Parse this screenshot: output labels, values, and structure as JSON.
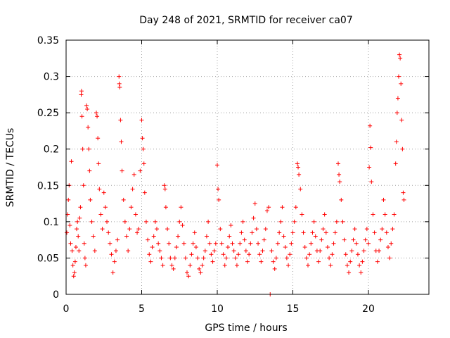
{
  "chart_data": {
    "type": "scatter",
    "title": "Day 248 of 2021, SRMTID for receiver ca07",
    "xlabel": "GPS time / hours",
    "ylabel": "SRMTID / TECUs",
    "xlim": [
      0,
      24
    ],
    "ylim": [
      0,
      0.35
    ],
    "xticks": [
      0,
      5,
      10,
      15,
      20
    ],
    "xtick_labels": [
      "0",
      "5",
      "10",
      "15",
      "20"
    ],
    "yticks": [
      0,
      0.05,
      0.1,
      0.15,
      0.2,
      0.25,
      0.3,
      0.35
    ],
    "ytick_labels": [
      "0",
      "0.05",
      "0.1",
      "0.15",
      "0.2",
      "0.25",
      "0.3",
      "0.35"
    ],
    "grid": true,
    "marker": "+",
    "series": [
      {
        "name": "SRMTID",
        "color": "#ff0000",
        "points": [
          [
            0.05,
            0.085
          ],
          [
            0.1,
            0.11
          ],
          [
            0.15,
            0.13
          ],
          [
            0.2,
            0.15
          ],
          [
            0.25,
            0.095
          ],
          [
            0.3,
            0.07
          ],
          [
            0.35,
            0.183
          ],
          [
            0.4,
            0.06
          ],
          [
            0.45,
            0.04
          ],
          [
            0.5,
            0.025
          ],
          [
            0.55,
            0.03
          ],
          [
            0.6,
            0.045
          ],
          [
            0.65,
            0.065
          ],
          [
            0.7,
            0.09
          ],
          [
            0.75,
            0.1
          ],
          [
            0.8,
            0.08
          ],
          [
            0.85,
            0.06
          ],
          [
            0.9,
            0.105
          ],
          [
            0.95,
            0.12
          ],
          [
            1.0,
            0.275
          ],
          [
            1.02,
            0.28
          ],
          [
            1.05,
            0.245
          ],
          [
            1.1,
            0.2
          ],
          [
            1.15,
            0.15
          ],
          [
            1.2,
            0.07
          ],
          [
            1.25,
            0.05
          ],
          [
            1.3,
            0.04
          ],
          [
            1.35,
            0.26
          ],
          [
            1.4,
            0.255
          ],
          [
            1.45,
            0.23
          ],
          [
            1.5,
            0.2
          ],
          [
            1.55,
            0.17
          ],
          [
            1.6,
            0.13
          ],
          [
            1.7,
            0.1
          ],
          [
            1.8,
            0.08
          ],
          [
            1.9,
            0.06
          ],
          [
            2.0,
            0.25
          ],
          [
            2.05,
            0.245
          ],
          [
            2.1,
            0.215
          ],
          [
            2.15,
            0.18
          ],
          [
            2.2,
            0.145
          ],
          [
            2.3,
            0.11
          ],
          [
            2.4,
            0.09
          ],
          [
            2.5,
            0.14
          ],
          [
            2.6,
            0.12
          ],
          [
            2.7,
            0.1
          ],
          [
            2.8,
            0.085
          ],
          [
            2.9,
            0.07
          ],
          [
            3.0,
            0.055
          ],
          [
            3.1,
            0.03
          ],
          [
            3.2,
            0.045
          ],
          [
            3.3,
            0.06
          ],
          [
            3.4,
            0.075
          ],
          [
            3.5,
            0.3
          ],
          [
            3.52,
            0.29
          ],
          [
            3.55,
            0.285
          ],
          [
            3.6,
            0.24
          ],
          [
            3.65,
            0.21
          ],
          [
            3.7,
            0.17
          ],
          [
            3.8,
            0.13
          ],
          [
            3.9,
            0.1
          ],
          [
            4.0,
            0.08
          ],
          [
            4.1,
            0.06
          ],
          [
            4.2,
            0.09
          ],
          [
            4.3,
            0.12
          ],
          [
            4.4,
            0.145
          ],
          [
            4.5,
            0.165
          ],
          [
            4.6,
            0.11
          ],
          [
            4.7,
            0.085
          ],
          [
            4.8,
            0.09
          ],
          [
            4.9,
            0.17
          ],
          [
            5.0,
            0.24
          ],
          [
            5.05,
            0.215
          ],
          [
            5.1,
            0.2
          ],
          [
            5.15,
            0.18
          ],
          [
            5.2,
            0.14
          ],
          [
            5.3,
            0.1
          ],
          [
            5.4,
            0.075
          ],
          [
            5.5,
            0.055
          ],
          [
            5.6,
            0.045
          ],
          [
            5.7,
            0.065
          ],
          [
            5.8,
            0.08
          ],
          [
            5.9,
            0.1
          ],
          [
            6.0,
            0.09
          ],
          [
            6.1,
            0.07
          ],
          [
            6.2,
            0.06
          ],
          [
            6.3,
            0.05
          ],
          [
            6.4,
            0.04
          ],
          [
            6.5,
            0.15
          ],
          [
            6.55,
            0.145
          ],
          [
            6.6,
            0.12
          ],
          [
            6.7,
            0.09
          ],
          [
            6.8,
            0.07
          ],
          [
            6.9,
            0.05
          ],
          [
            7.0,
            0.04
          ],
          [
            7.1,
            0.035
          ],
          [
            7.2,
            0.05
          ],
          [
            7.3,
            0.065
          ],
          [
            7.4,
            0.08
          ],
          [
            7.5,
            0.1
          ],
          [
            7.6,
            0.12
          ],
          [
            7.7,
            0.095
          ],
          [
            7.8,
            0.07
          ],
          [
            7.9,
            0.05
          ],
          [
            8.0,
            0.03
          ],
          [
            8.1,
            0.025
          ],
          [
            8.2,
            0.04
          ],
          [
            8.3,
            0.055
          ],
          [
            8.4,
            0.07
          ],
          [
            8.5,
            0.085
          ],
          [
            8.6,
            0.065
          ],
          [
            8.7,
            0.05
          ],
          [
            8.8,
            0.035
          ],
          [
            8.9,
            0.03
          ],
          [
            9.0,
            0.04
          ],
          [
            9.1,
            0.05
          ],
          [
            9.2,
            0.06
          ],
          [
            9.3,
            0.08
          ],
          [
            9.4,
            0.1
          ],
          [
            9.5,
            0.07
          ],
          [
            9.6,
            0.055
          ],
          [
            9.7,
            0.045
          ],
          [
            9.8,
            0.06
          ],
          [
            9.9,
            0.07
          ],
          [
            10.0,
            0.178
          ],
          [
            10.05,
            0.145
          ],
          [
            10.1,
            0.13
          ],
          [
            10.2,
            0.09
          ],
          [
            10.3,
            0.07
          ],
          [
            10.4,
            0.055
          ],
          [
            10.5,
            0.04
          ],
          [
            10.6,
            0.05
          ],
          [
            10.7,
            0.065
          ],
          [
            10.8,
            0.08
          ],
          [
            10.9,
            0.095
          ],
          [
            11.0,
            0.07
          ],
          [
            11.1,
            0.06
          ],
          [
            11.2,
            0.05
          ],
          [
            11.3,
            0.04
          ],
          [
            11.4,
            0.055
          ],
          [
            11.5,
            0.07
          ],
          [
            11.6,
            0.085
          ],
          [
            11.7,
            0.1
          ],
          [
            11.8,
            0.075
          ],
          [
            11.9,
            0.06
          ],
          [
            12.0,
            0.045
          ],
          [
            12.1,
            0.055
          ],
          [
            12.2,
            0.07
          ],
          [
            12.3,
            0.085
          ],
          [
            12.4,
            0.105
          ],
          [
            12.5,
            0.125
          ],
          [
            12.6,
            0.09
          ],
          [
            12.7,
            0.07
          ],
          [
            12.8,
            0.055
          ],
          [
            12.9,
            0.045
          ],
          [
            13.0,
            0.06
          ],
          [
            13.1,
            0.075
          ],
          [
            13.2,
            0.09
          ],
          [
            13.3,
            0.115
          ],
          [
            13.4,
            0.12
          ],
          [
            13.5,
            0.0
          ],
          [
            13.6,
            0.06
          ],
          [
            13.7,
            0.045
          ],
          [
            13.8,
            0.035
          ],
          [
            13.9,
            0.05
          ],
          [
            14.0,
            0.07
          ],
          [
            14.1,
            0.085
          ],
          [
            14.2,
            0.1
          ],
          [
            14.3,
            0.12
          ],
          [
            14.4,
            0.08
          ],
          [
            14.5,
            0.065
          ],
          [
            14.6,
            0.05
          ],
          [
            14.7,
            0.04
          ],
          [
            14.8,
            0.055
          ],
          [
            14.9,
            0.07
          ],
          [
            15.0,
            0.085
          ],
          [
            15.1,
            0.1
          ],
          [
            15.2,
            0.12
          ],
          [
            15.3,
            0.18
          ],
          [
            15.35,
            0.175
          ],
          [
            15.4,
            0.165
          ],
          [
            15.5,
            0.145
          ],
          [
            15.6,
            0.11
          ],
          [
            15.7,
            0.085
          ],
          [
            15.8,
            0.065
          ],
          [
            15.9,
            0.05
          ],
          [
            16.0,
            0.04
          ],
          [
            16.1,
            0.055
          ],
          [
            16.2,
            0.07
          ],
          [
            16.3,
            0.085
          ],
          [
            16.4,
            0.1
          ],
          [
            16.5,
            0.08
          ],
          [
            16.6,
            0.06
          ],
          [
            16.7,
            0.045
          ],
          [
            16.8,
            0.06
          ],
          [
            16.9,
            0.075
          ],
          [
            17.0,
            0.09
          ],
          [
            17.1,
            0.11
          ],
          [
            17.2,
            0.085
          ],
          [
            17.3,
            0.065
          ],
          [
            17.4,
            0.05
          ],
          [
            17.5,
            0.04
          ],
          [
            17.6,
            0.055
          ],
          [
            17.7,
            0.07
          ],
          [
            17.8,
            0.085
          ],
          [
            17.9,
            0.1
          ],
          [
            18.0,
            0.18
          ],
          [
            18.05,
            0.165
          ],
          [
            18.1,
            0.155
          ],
          [
            18.2,
            0.13
          ],
          [
            18.3,
            0.1
          ],
          [
            18.4,
            0.075
          ],
          [
            18.5,
            0.055
          ],
          [
            18.6,
            0.04
          ],
          [
            18.7,
            0.03
          ],
          [
            18.8,
            0.045
          ],
          [
            18.9,
            0.06
          ],
          [
            19.0,
            0.075
          ],
          [
            19.1,
            0.09
          ],
          [
            19.2,
            0.07
          ],
          [
            19.3,
            0.055
          ],
          [
            19.4,
            0.04
          ],
          [
            19.5,
            0.03
          ],
          [
            19.6,
            0.045
          ],
          [
            19.7,
            0.06
          ],
          [
            19.8,
            0.075
          ],
          [
            19.9,
            0.09
          ],
          [
            20.0,
            0.07
          ],
          [
            20.05,
            0.175
          ],
          [
            20.1,
            0.232
          ],
          [
            20.15,
            0.202
          ],
          [
            20.2,
            0.155
          ],
          [
            20.3,
            0.11
          ],
          [
            20.4,
            0.085
          ],
          [
            20.5,
            0.06
          ],
          [
            20.6,
            0.045
          ],
          [
            20.7,
            0.06
          ],
          [
            20.8,
            0.075
          ],
          [
            20.9,
            0.09
          ],
          [
            21.0,
            0.13
          ],
          [
            21.1,
            0.11
          ],
          [
            21.2,
            0.085
          ],
          [
            21.3,
            0.065
          ],
          [
            21.4,
            0.05
          ],
          [
            21.5,
            0.07
          ],
          [
            21.6,
            0.09
          ],
          [
            21.7,
            0.11
          ],
          [
            21.8,
            0.18
          ],
          [
            21.85,
            0.21
          ],
          [
            21.9,
            0.25
          ],
          [
            21.95,
            0.27
          ],
          [
            22.0,
            0.3
          ],
          [
            22.05,
            0.33
          ],
          [
            22.1,
            0.325
          ],
          [
            22.15,
            0.29
          ],
          [
            22.2,
            0.24
          ],
          [
            22.25,
            0.2
          ],
          [
            22.3,
            0.14
          ],
          [
            22.35,
            0.13
          ]
        ]
      }
    ]
  }
}
